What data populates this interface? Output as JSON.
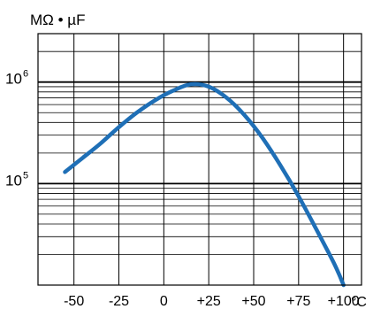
{
  "chart_data": {
    "type": "line",
    "ylabel_unit": "MΩ • µF",
    "xlabel_unit": "°C",
    "y_scale": "log",
    "ylim": [
      10000,
      3000000
    ],
    "xlim": [
      -70,
      110
    ],
    "x_ticks": [
      -50,
      -25,
      0,
      25,
      50,
      75,
      100
    ],
    "x_tick_labels": [
      "-50",
      "-25",
      "0",
      "+25",
      "+50",
      "+75",
      "+100"
    ],
    "y_major_ticks": [
      {
        "value": 100000,
        "base": "10",
        "exp": "5"
      },
      {
        "value": 1000000,
        "base": "10",
        "exp": "6"
      }
    ],
    "y_minor_ticks": [
      20000,
      30000,
      40000,
      50000,
      60000,
      70000,
      80000,
      90000,
      200000,
      300000,
      400000,
      500000,
      600000,
      700000,
      800000,
      900000,
      2000000,
      3000000
    ],
    "grid": true,
    "series": [
      {
        "color": "#1f6fb6",
        "points": [
          [
            -55,
            130000
          ],
          [
            -45,
            180000
          ],
          [
            -35,
            250000
          ],
          [
            -25,
            360000
          ],
          [
            -15,
            500000
          ],
          [
            -5,
            660000
          ],
          [
            5,
            820000
          ],
          [
            15,
            950000
          ],
          [
            25,
            900000
          ],
          [
            35,
            700000
          ],
          [
            45,
            470000
          ],
          [
            55,
            280000
          ],
          [
            65,
            150000
          ],
          [
            75,
            75000
          ],
          [
            85,
            35000
          ],
          [
            95,
            16000
          ],
          [
            100,
            10000
          ]
        ]
      }
    ]
  }
}
